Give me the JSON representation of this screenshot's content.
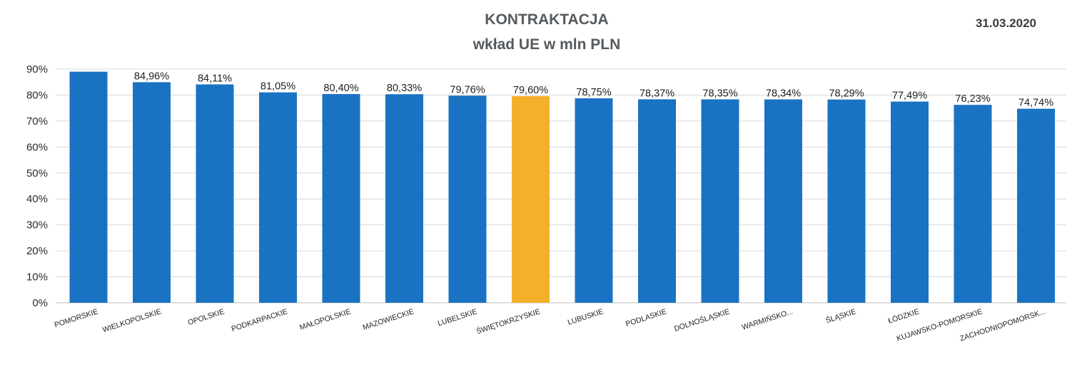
{
  "header": {
    "title_line1": "KONTRAKTACJA",
    "title_line2": "wkład UE w mln PLN",
    "date": "31.03.2020"
  },
  "colors": {
    "bar_default": "#1a73c2",
    "bar_highlight": "#f4b02a",
    "gridline": "#d9d9d9"
  },
  "chart_data": {
    "type": "bar",
    "title": "KONTRAKTACJA wkład UE w mln PLN",
    "xlabel": "",
    "ylabel": "",
    "ylim": [
      0,
      90
    ],
    "yticks": [
      0,
      10,
      20,
      30,
      40,
      50,
      60,
      70,
      80,
      90
    ],
    "ytick_labels": [
      "0%",
      "10%",
      "20%",
      "30%",
      "40%",
      "50%",
      "60%",
      "70%",
      "80%",
      "90%"
    ],
    "grid": true,
    "legend": "none",
    "highlight_category": "ŚWIĘTOKRZYSKIE",
    "categories": [
      "POMORSKIE",
      "WIELKOPOLSKIE",
      "OPOLSKIE",
      "PODKARPACKIE",
      "MAŁOPOLSKIE",
      "MAZOWIECKIE",
      "LUBELSKIE",
      "ŚWIĘTOKRZYSKIE",
      "LUBUSKIE",
      "PODLASKIE",
      "DOLNOŚLĄSKIE",
      "WARMIŃSKO...",
      "ŚLĄSKIE",
      "ŁÓDZKIE",
      "KUJAWSKO-POMORSKIE",
      "ZACHODNIOPOMORSK..."
    ],
    "values": [
      89.0,
      84.96,
      84.11,
      81.05,
      80.4,
      80.33,
      79.76,
      79.6,
      78.75,
      78.37,
      78.35,
      78.34,
      78.29,
      77.49,
      76.23,
      74.74
    ],
    "data_labels": [
      "",
      "84,96%",
      "84,11%",
      "81,05%",
      "80,40%",
      "80,33%",
      "79,76%",
      "79,60%",
      "78,75%",
      "78,37%",
      "78,35%",
      "78,34%",
      "78,29%",
      "77,49%",
      "76,23%",
      "74,74%"
    ]
  }
}
